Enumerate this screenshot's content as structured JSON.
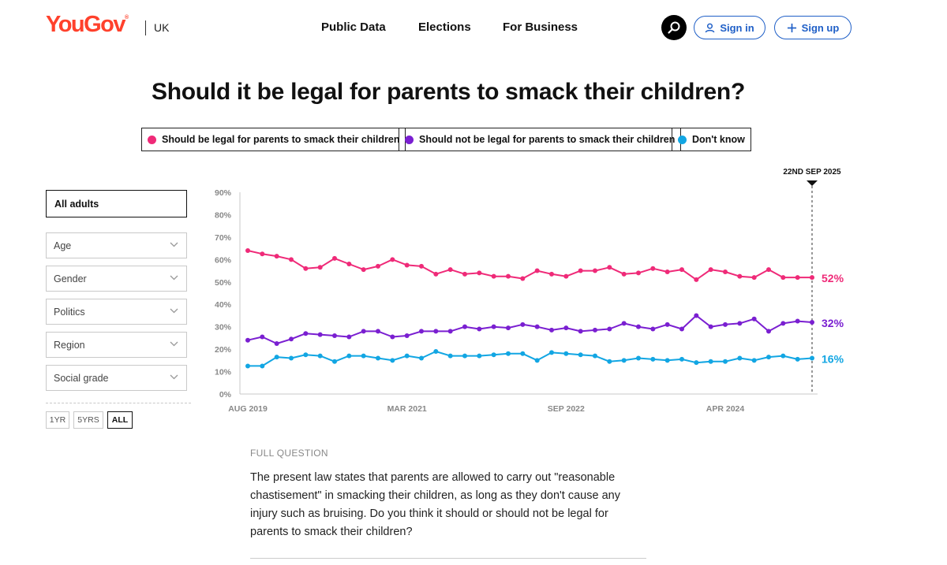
{
  "header": {
    "logo": "YouGov",
    "logo_mark": "®",
    "region": "UK",
    "nav": [
      "Public Data",
      "Elections",
      "For Business"
    ],
    "sign_in": "Sign in",
    "sign_up": "Sign up",
    "icons": {
      "search": "search-icon",
      "user": "user-icon",
      "plus": "plus-icon"
    }
  },
  "filters": {
    "main": "All adults",
    "selects": [
      "Age",
      "Gender",
      "Politics",
      "Region",
      "Social grade"
    ],
    "ranges": [
      "1YR",
      "5YRS",
      "ALL"
    ],
    "active_range": "ALL"
  },
  "full_question": {
    "label": "FULL QUESTION",
    "text": "The present law states that parents are allowed to carry out \"reasonable chastisement\" in smacking their children, as long as they don't cause any injury such as bruising. Do you think it should or should not be legal for parents to smack their children?"
  },
  "colors": {
    "brand": "#ff412c",
    "link": "#1f5fc7",
    "legal": "#ef2a78",
    "not_legal": "#7a1fd1",
    "dont_know": "#12a6e3"
  },
  "chart_data": {
    "type": "line",
    "title": "Should it be legal for parents to smack their children?",
    "x_tick_labels": [
      "AUG 2019",
      "MAR 2021",
      "SEP 2022",
      "APR 2024"
    ],
    "x_tick_index": [
      0,
      11,
      22,
      33
    ],
    "y_tick_labels": [
      "90%",
      "80%",
      "70%",
      "60%",
      "50%",
      "40%",
      "30%",
      "20%",
      "10%",
      "0%"
    ],
    "ylim": [
      0,
      90
    ],
    "marker_label": "22ND SEP 2025",
    "series": [
      {
        "name": "Should be legal for parents to smack their children",
        "color": "#ef2a78",
        "end_label": "52%",
        "values": [
          64,
          62.5,
          61.5,
          60,
          56,
          56.5,
          60.5,
          58,
          55.5,
          57,
          60,
          57.5,
          57,
          53.5,
          55.5,
          53.5,
          54,
          52.5,
          52.5,
          51.5,
          55,
          53.5,
          52.5,
          55,
          55,
          56.5,
          53.5,
          54,
          56,
          54.5,
          55.5,
          51,
          55.5,
          54.5,
          52.5,
          52,
          55.5,
          52,
          52,
          52
        ]
      },
      {
        "name": "Should not be legal for parents to smack their children",
        "color": "#7a1fd1",
        "end_label": "32%",
        "values": [
          24,
          25.5,
          22.5,
          24.5,
          27,
          26.5,
          26,
          25.5,
          28,
          28,
          25.5,
          26,
          28,
          28,
          28,
          30,
          29,
          30,
          29.5,
          31,
          30,
          28.5,
          29.5,
          28,
          28.5,
          29,
          31.5,
          30,
          29,
          31,
          29,
          35,
          30,
          31,
          31.5,
          33.5,
          28,
          31.5,
          32.5,
          32
        ]
      },
      {
        "name": "Don't know",
        "color": "#12a6e3",
        "end_label": "16%",
        "values": [
          12.5,
          12.5,
          16.5,
          16,
          17.5,
          17,
          14.5,
          17,
          17,
          16,
          15,
          17,
          16,
          19,
          17,
          17,
          17,
          17.5,
          18,
          18,
          15,
          18.5,
          18,
          17.5,
          17,
          14.5,
          15,
          16,
          15.5,
          15,
          15.5,
          14,
          14.5,
          14.5,
          16,
          15,
          16.5,
          17,
          15.5,
          16
        ]
      }
    ]
  }
}
